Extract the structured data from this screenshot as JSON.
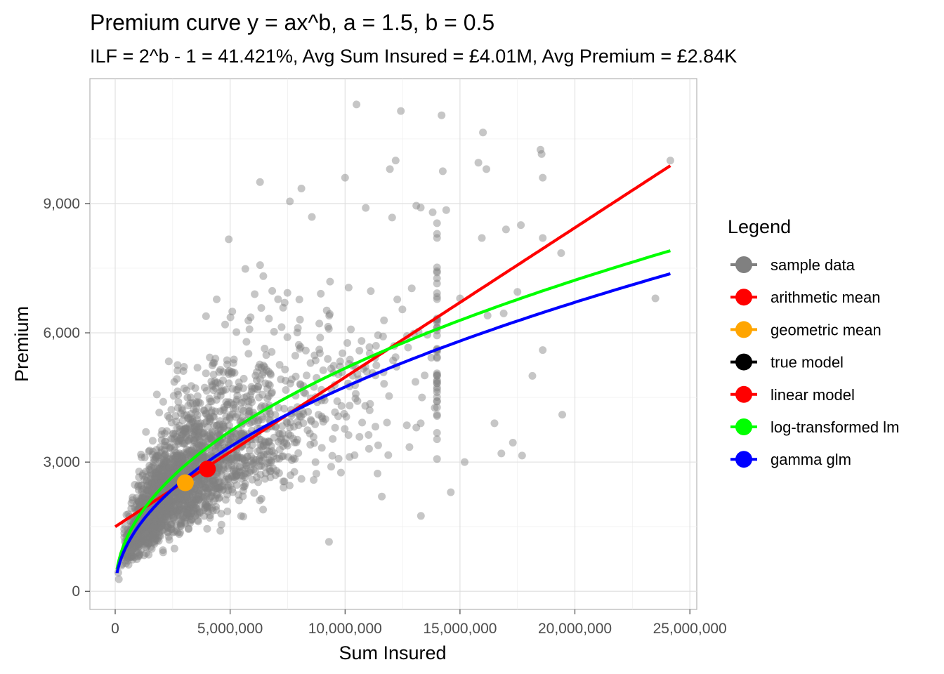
{
  "chart_data": {
    "type": "scatter",
    "title": "Premium curve y = ax^b, a = 1.5, b = 0.5",
    "subtitle": "ILF = 2^b - 1 = 41.421%, Avg Sum Insured = £4.01M, Avg Premium = £2.84K",
    "xlabel": "Sum Insured",
    "ylabel": "Premium",
    "xlim": [
      -1100000,
      25300000
    ],
    "ylim": [
      -420,
      11900
    ],
    "x_ticks": [
      {
        "value": 0,
        "label": "0"
      },
      {
        "value": 5000000,
        "label": "5,000,000"
      },
      {
        "value": 10000000,
        "label": "10,000,000"
      },
      {
        "value": 15000000,
        "label": "15,000,000"
      },
      {
        "value": 20000000,
        "label": "20,000,000"
      },
      {
        "value": 25000000,
        "label": "25,000,000"
      }
    ],
    "y_ticks": [
      {
        "value": 0,
        "label": "0"
      },
      {
        "value": 3000,
        "label": "3,000"
      },
      {
        "value": 6000,
        "label": "6,000"
      },
      {
        "value": 9000,
        "label": "9,000"
      }
    ],
    "grid": true,
    "legend": {
      "title": "Legend",
      "position": "right",
      "entries": [
        {
          "label": "sample data",
          "color": "#808080"
        },
        {
          "label": "arithmetic mean",
          "color": "#ff0000"
        },
        {
          "label": "geometric mean",
          "color": "#ffa500"
        },
        {
          "label": "true model",
          "color": "#000000"
        },
        {
          "label": "linear model",
          "color": "#ff0000"
        },
        {
          "label": "log-transformed lm",
          "color": "#00ff00"
        },
        {
          "label": "gamma glm",
          "color": "#0000ff"
        }
      ]
    },
    "points": {
      "name": "sample data",
      "color": "#808080",
      "opacity": 0.45,
      "outliers": [
        [
          10500000,
          11300
        ],
        [
          14200000,
          11050
        ],
        [
          16000000,
          10650
        ],
        [
          18500000,
          10250
        ],
        [
          18550000,
          10150
        ],
        [
          24150000,
          10000
        ],
        [
          12200000,
          10000
        ],
        [
          15800000,
          9950
        ],
        [
          16150000,
          9800
        ],
        [
          14250000,
          9750
        ],
        [
          18600000,
          9600
        ],
        [
          10000000,
          9600
        ],
        [
          11950000,
          9800
        ],
        [
          6300000,
          9500
        ],
        [
          8100000,
          9350
        ],
        [
          7600000,
          9050
        ],
        [
          13100000,
          8950
        ],
        [
          14400000,
          8850
        ],
        [
          10900000,
          8900
        ],
        [
          15950000,
          8200
        ],
        [
          17000000,
          8400
        ],
        [
          17650000,
          8500
        ],
        [
          18600000,
          8200
        ],
        [
          19400000,
          7850
        ],
        [
          17500000,
          6950
        ],
        [
          23500000,
          6800
        ],
        [
          19450000,
          4100
        ],
        [
          17700000,
          3150
        ],
        [
          14600000,
          2300
        ],
        [
          13300000,
          1750
        ],
        [
          9300000,
          1150
        ],
        [
          16500000,
          3900
        ],
        [
          17300000,
          3450
        ],
        [
          15200000,
          3000
        ],
        [
          16800000,
          3200
        ],
        [
          18150000,
          5000
        ],
        [
          18600000,
          5600
        ],
        [
          16200000,
          6400
        ],
        [
          16900000,
          6450
        ],
        [
          14000000,
          5000
        ],
        [
          13100000,
          3800
        ],
        [
          11600000,
          2200
        ],
        [
          12800000,
          3350
        ],
        [
          15000000,
          6800
        ]
      ]
    },
    "means": [
      {
        "name": "arithmetic mean",
        "x": 4010000,
        "y": 2840,
        "color": "#ff0000"
      },
      {
        "name": "geometric mean",
        "x": 3050000,
        "y": 2520,
        "color": "#ffa500"
      }
    ],
    "lines": [
      {
        "name": "linear model",
        "color": "#ff0000",
        "form": "linear",
        "intercept": 1500,
        "slope": 0.000347,
        "x_range": [
          0,
          24150000
        ]
      },
      {
        "name": "log-transformed lm",
        "color": "#00ff00",
        "form": "power",
        "a": 2.26,
        "b": 0.48,
        "x_range": [
          80000,
          24150000
        ]
      },
      {
        "name": "gamma glm",
        "color": "#0000ff",
        "form": "power",
        "a": 1.5,
        "b": 0.5,
        "x_range": [
          80000,
          24150000
        ]
      }
    ]
  }
}
